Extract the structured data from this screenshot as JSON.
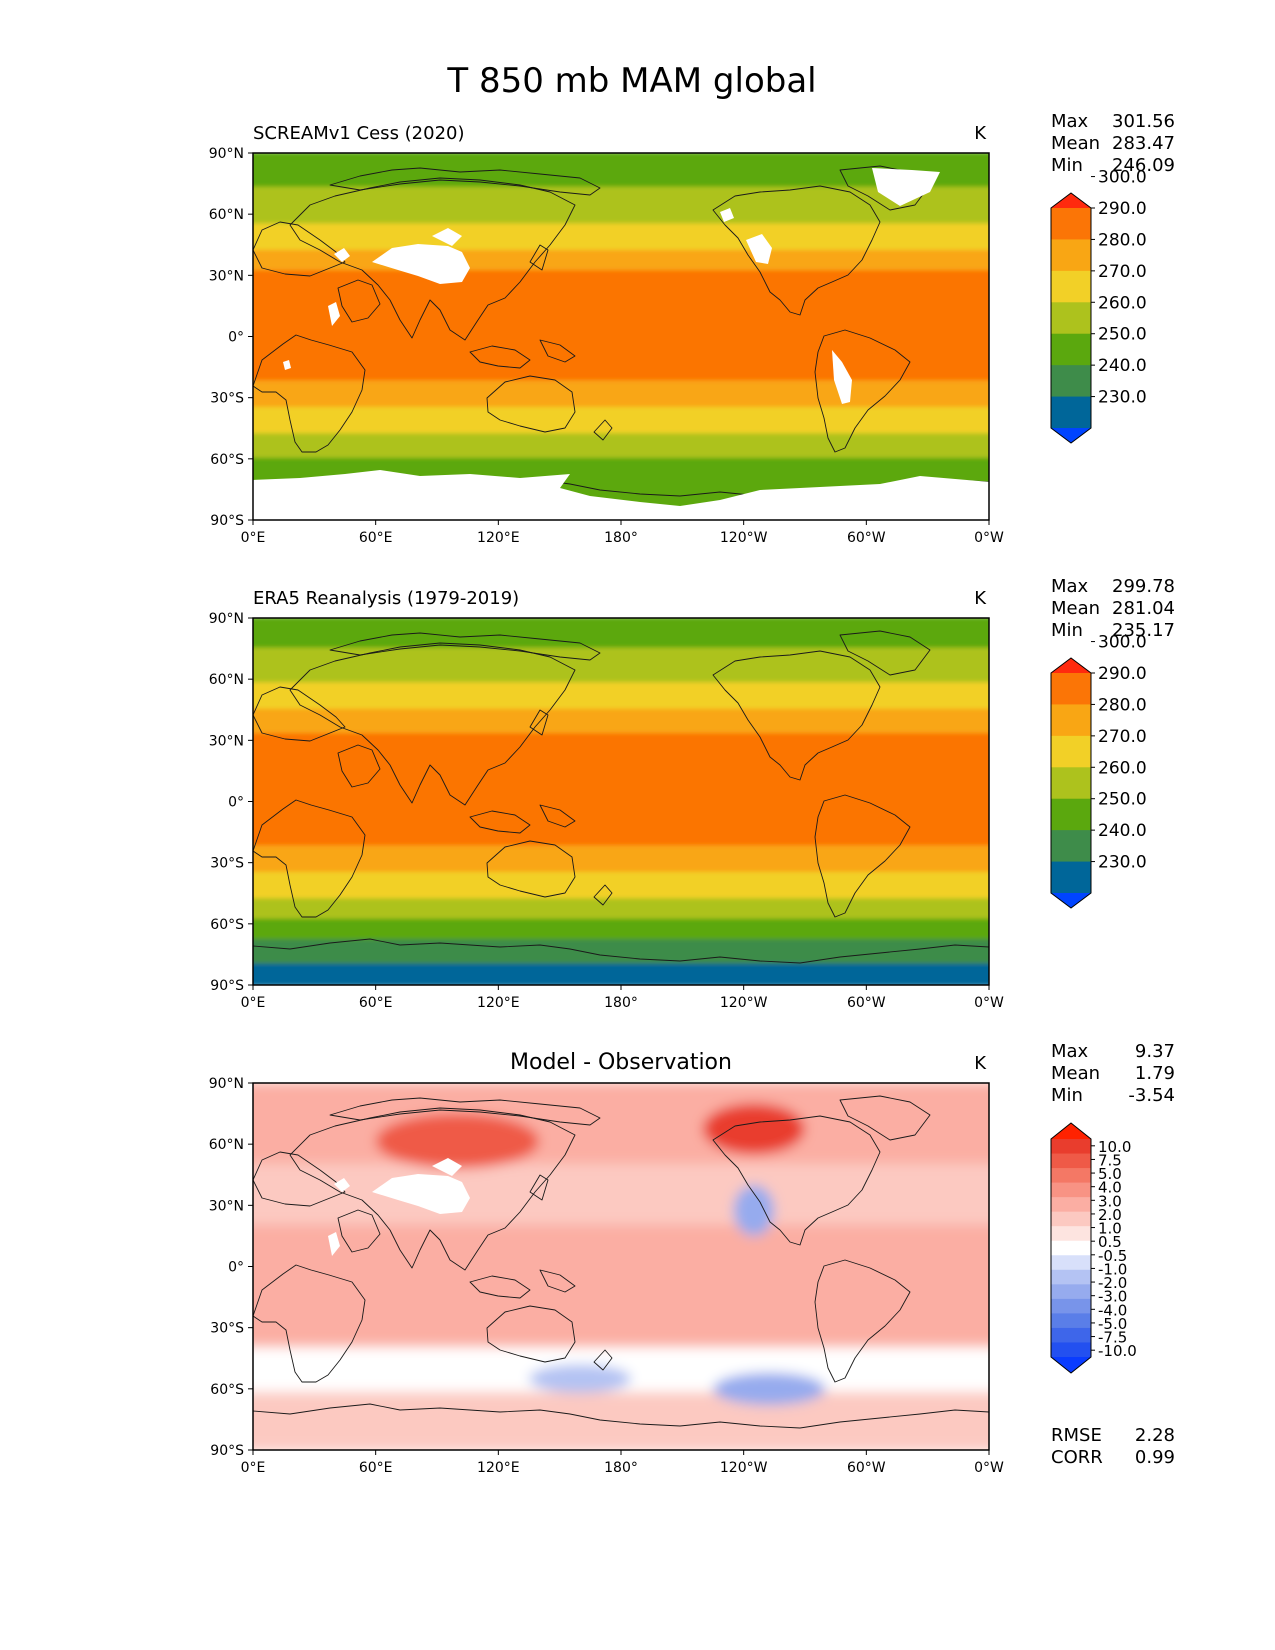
{
  "figure": {
    "title": "T 850 mb MAM global"
  },
  "axes": {
    "xticks": [
      "0°E",
      "60°E",
      "120°E",
      "180°",
      "120°W",
      "60°W",
      "0°W"
    ],
    "yticks": [
      "90°N",
      "60°N",
      "30°N",
      "0°",
      "30°S",
      "60°S",
      "90°S"
    ]
  },
  "panels": [
    {
      "id": "model",
      "title": "SCREAMv1 Cess (2020)",
      "units": "K",
      "stats": {
        "labels": [
          "Max",
          "Mean",
          "Min"
        ],
        "values": [
          "301.56",
          "283.47",
          "246.09"
        ]
      }
    },
    {
      "id": "obs",
      "title": "ERA5 Reanalysis (1979-2019)",
      "units": "K",
      "stats": {
        "labels": [
          "Max",
          "Mean",
          "Min"
        ],
        "values": [
          "299.78",
          "281.04",
          "235.17"
        ]
      }
    },
    {
      "id": "diff",
      "title": "Model - Observation",
      "units": "K",
      "stats": {
        "labels": [
          "Max",
          "Mean",
          "Min"
        ],
        "values": [
          "9.37",
          "1.79",
          "-3.54"
        ]
      },
      "metrics": {
        "labels": [
          "RMSE",
          "CORR"
        ],
        "values": [
          "2.28",
          "0.99"
        ]
      }
    }
  ],
  "colorbars": {
    "temperature": {
      "levels": [
        "230.0",
        "240.0",
        "250.0",
        "260.0",
        "270.0",
        "280.0",
        "290.0",
        "300.0"
      ],
      "colors": [
        "#0044ff",
        "#006699",
        "#3e8c4a",
        "#5ba80e",
        "#adc21d",
        "#f2d027",
        "#f9a614",
        "#fb7506",
        "#ff2a0e"
      ]
    },
    "difference": {
      "levels": [
        "-10.0",
        "-7.5",
        "-5.0",
        "-4.0",
        "-3.0",
        "-2.0",
        "-1.0",
        "-0.5",
        "0.5",
        "1.0",
        "2.0",
        "3.0",
        "4.0",
        "5.0",
        "7.5",
        "10.0"
      ],
      "colors": [
        "#0a3cff",
        "#2350f0",
        "#3e66ea",
        "#5a7ee8",
        "#7894ea",
        "#96abee",
        "#b4c3f3",
        "#d8e0fa",
        "#ffffff",
        "#fde4e0",
        "#fcc9c1",
        "#fbaea3",
        "#f89384",
        "#f47865",
        "#ef5a47",
        "#e93d2d",
        "#ff2200"
      ]
    }
  },
  "chart_data": [
    {
      "type": "heatmap",
      "title": "SCREAMv1 Cess (2020)",
      "variable": "T 850 mb",
      "season": "MAM",
      "units": "K",
      "xlabel": "",
      "ylabel": "",
      "x_range": [
        0,
        360
      ],
      "y_range": [
        -90,
        90
      ],
      "zonal_bands": [
        {
          "lat": [
            73,
            90
          ],
          "level": 255
        },
        {
          "lat": [
            55,
            73
          ],
          "level": 265
        },
        {
          "lat": [
            42,
            55
          ],
          "level": 275
        },
        {
          "lat": [
            32,
            42
          ],
          "level": 285
        },
        {
          "lat": [
            -22,
            32
          ],
          "level": 295
        },
        {
          "lat": [
            -35,
            -22
          ],
          "level": 285
        },
        {
          "lat": [
            -48,
            -35
          ],
          "level": 275
        },
        {
          "lat": [
            -60,
            -48
          ],
          "level": 265
        },
        {
          "lat": [
            -90,
            -60
          ],
          "level": 255
        }
      ],
      "stats": {
        "max": 301.56,
        "mean": 283.47,
        "min": 246.09
      }
    },
    {
      "type": "heatmap",
      "title": "ERA5 Reanalysis (1979-2019)",
      "variable": "T 850 mb",
      "season": "MAM",
      "units": "K",
      "xlabel": "",
      "ylabel": "",
      "x_range": [
        0,
        360
      ],
      "y_range": [
        -90,
        90
      ],
      "zonal_bands": [
        {
          "lat": [
            75,
            90
          ],
          "level": 255
        },
        {
          "lat": [
            58,
            75
          ],
          "level": 265
        },
        {
          "lat": [
            45,
            58
          ],
          "level": 275
        },
        {
          "lat": [
            33,
            45
          ],
          "level": 285
        },
        {
          "lat": [
            -22,
            33
          ],
          "level": 295
        },
        {
          "lat": [
            -35,
            -22
          ],
          "level": 285
        },
        {
          "lat": [
            -48,
            -35
          ],
          "level": 275
        },
        {
          "lat": [
            -58,
            -48
          ],
          "level": 265
        },
        {
          "lat": [
            -68,
            -58
          ],
          "level": 255
        },
        {
          "lat": [
            -80,
            -68
          ],
          "level": 245
        },
        {
          "lat": [
            -90,
            -80
          ],
          "level": 235
        }
      ],
      "stats": {
        "max": 299.78,
        "mean": 281.04,
        "min": 235.17
      }
    },
    {
      "type": "heatmap",
      "title": "Model - Observation",
      "variable": "T 850 mb difference",
      "season": "MAM",
      "units": "K",
      "xlabel": "",
      "ylabel": "",
      "x_range": [
        0,
        360
      ],
      "y_range": [
        -90,
        90
      ],
      "zonal_bands": [
        {
          "lat": [
            50,
            90
          ],
          "level": 2.5
        },
        {
          "lat": [
            20,
            50
          ],
          "level": 1.5
        },
        {
          "lat": [
            -40,
            20
          ],
          "level": 2.5
        },
        {
          "lat": [
            -62,
            -40
          ],
          "level": 0.0
        },
        {
          "lat": [
            -90,
            -62
          ],
          "level": 1.5
        }
      ],
      "anomalies": [
        {
          "lat": [
            48,
            75
          ],
          "lon": [
            60,
            140
          ],
          "level": 6.0
        },
        {
          "lat": [
            55,
            80
          ],
          "lon": [
            220,
            270
          ],
          "level": 9.0
        },
        {
          "lat": [
            15,
            40
          ],
          "lon": [
            235,
            255
          ],
          "level": -2.5
        },
        {
          "lat": [
            -68,
            -52
          ],
          "lon": [
            225,
            280
          ],
          "level": -2.5
        },
        {
          "lat": [
            -62,
            -48
          ],
          "lon": [
            135,
            185
          ],
          "level": -1.5
        }
      ],
      "stats": {
        "max": 9.37,
        "mean": 1.79,
        "min": -3.54
      },
      "metrics": {
        "rmse": 2.28,
        "corr": 0.99
      }
    }
  ]
}
